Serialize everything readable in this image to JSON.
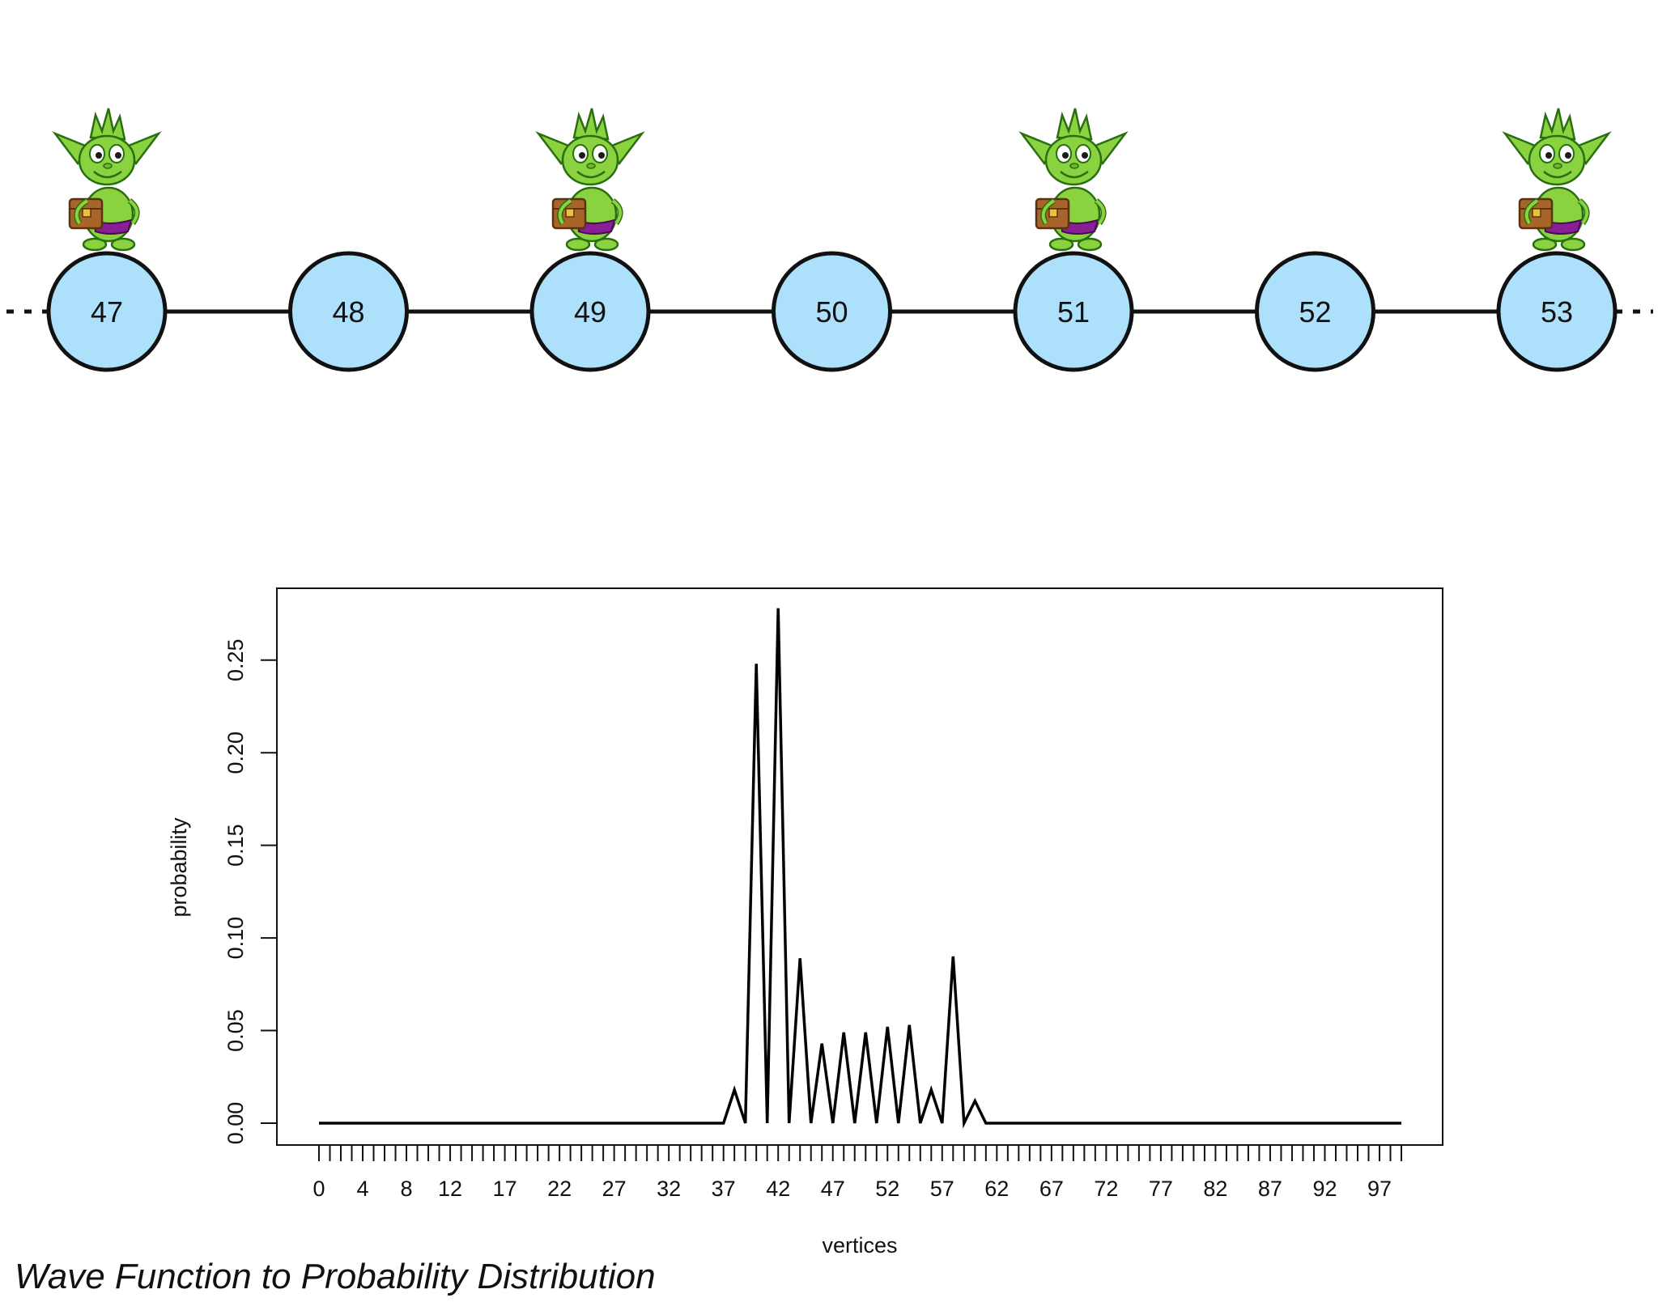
{
  "graph": {
    "nodes": [
      "47",
      "48",
      "49",
      "50",
      "51",
      "52",
      "53"
    ],
    "walker_nodes": [
      "47",
      "49",
      "51",
      "53"
    ],
    "walker_icon": "goblin-walker-icon",
    "node_fill": "#ade0fb",
    "edge_color": "#111111"
  },
  "caption": "Wave Function to Probability Distribution",
  "chart_data": {
    "type": "line",
    "title": "",
    "xlabel": "vertices",
    "ylabel": "probability",
    "xlim": [
      0,
      99
    ],
    "ylim": [
      0,
      0.28
    ],
    "x_tick_labels": [
      "0",
      "4",
      "8",
      "12",
      "17",
      "22",
      "27",
      "32",
      "37",
      "42",
      "47",
      "52",
      "57",
      "62",
      "67",
      "72",
      "77",
      "82",
      "87",
      "92",
      "97"
    ],
    "x_tick_values": [
      0,
      4,
      8,
      12,
      17,
      22,
      27,
      32,
      37,
      42,
      47,
      52,
      57,
      62,
      67,
      72,
      77,
      82,
      87,
      92,
      97
    ],
    "y_tick_labels": [
      "0.00",
      "0.05",
      "0.10",
      "0.15",
      "0.20",
      "0.25"
    ],
    "y_tick_values": [
      0,
      0.05,
      0.1,
      0.15,
      0.2,
      0.25
    ],
    "grid": false,
    "legend": "none",
    "series": [
      {
        "x": [
          0,
          1,
          2,
          3,
          4,
          5,
          6,
          7,
          8,
          9,
          10,
          11,
          12,
          13,
          14,
          15,
          16,
          17,
          18,
          19,
          20,
          21,
          22,
          23,
          24,
          25,
          26,
          27,
          28,
          29,
          30,
          31,
          32,
          33,
          34,
          35,
          36,
          37,
          38,
          39,
          40,
          41,
          42,
          43,
          44,
          45,
          46,
          47,
          48,
          49,
          50,
          51,
          52,
          53,
          54,
          55,
          56,
          57,
          58,
          59,
          60,
          61,
          62,
          63,
          64,
          65,
          66,
          67,
          68,
          69,
          70,
          71,
          72,
          73,
          74,
          75,
          76,
          77,
          78,
          79,
          80,
          81,
          82,
          83,
          84,
          85,
          86,
          87,
          88,
          89,
          90,
          91,
          92,
          93,
          94,
          95,
          96,
          97,
          98,
          99
        ],
        "values": [
          0,
          0,
          0,
          0,
          0,
          0,
          0,
          0,
          0,
          0,
          0,
          0,
          0,
          0,
          0,
          0,
          0,
          0,
          0,
          0,
          0,
          0,
          0,
          0,
          0,
          0,
          0,
          0,
          0,
          0,
          0,
          0,
          0,
          0,
          0,
          0,
          0,
          0,
          0.018,
          0,
          0.248,
          0,
          0.278,
          0,
          0.089,
          0,
          0.043,
          0,
          0.049,
          0,
          0.049,
          0,
          0.052,
          0,
          0.053,
          0,
          0.018,
          0,
          0.09,
          0,
          0.012,
          0,
          0,
          0,
          0,
          0,
          0,
          0,
          0,
          0,
          0,
          0,
          0,
          0,
          0,
          0,
          0,
          0,
          0,
          0,
          0,
          0,
          0,
          0,
          0,
          0,
          0,
          0,
          0,
          0,
          0,
          0,
          0,
          0,
          0,
          0,
          0,
          0,
          0,
          0
        ]
      }
    ]
  }
}
